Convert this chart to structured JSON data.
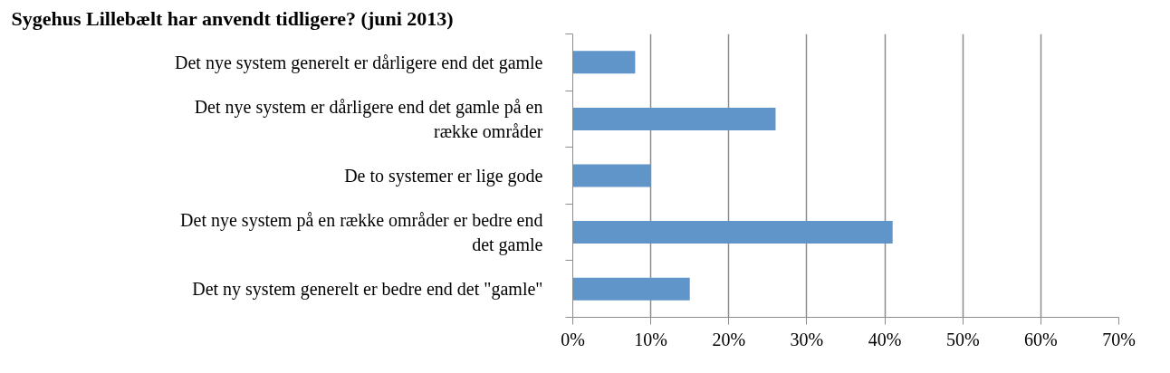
{
  "chart_data": {
    "type": "bar",
    "orientation": "horizontal",
    "title": "Sygehus Lillebælt har anvendt tidligere? (juni 2013)",
    "categories": [
      "Det nye system generelt er dårligere end det gamle",
      "Det nye system er dårligere end det gamle på en række områder",
      "De to systemer er lige gode",
      "Det nye system på en række områder er bedre end det gamle",
      "Det ny system generelt er bedre end det \"gamle\""
    ],
    "values": [
      8,
      26,
      10,
      41,
      15
    ],
    "color": "#5f95c8",
    "xlim": [
      0,
      70
    ],
    "xticks": [
      {
        "value": 0,
        "label": "0%"
      },
      {
        "value": 10,
        "label": "10%"
      },
      {
        "value": 20,
        "label": "20%"
      },
      {
        "value": 30,
        "label": "30%"
      },
      {
        "value": 40,
        "label": "40%"
      },
      {
        "value": 50,
        "label": "50%"
      },
      {
        "value": 60,
        "label": "60%"
      },
      {
        "value": 70,
        "label": "70%"
      }
    ],
    "grid": "x"
  }
}
